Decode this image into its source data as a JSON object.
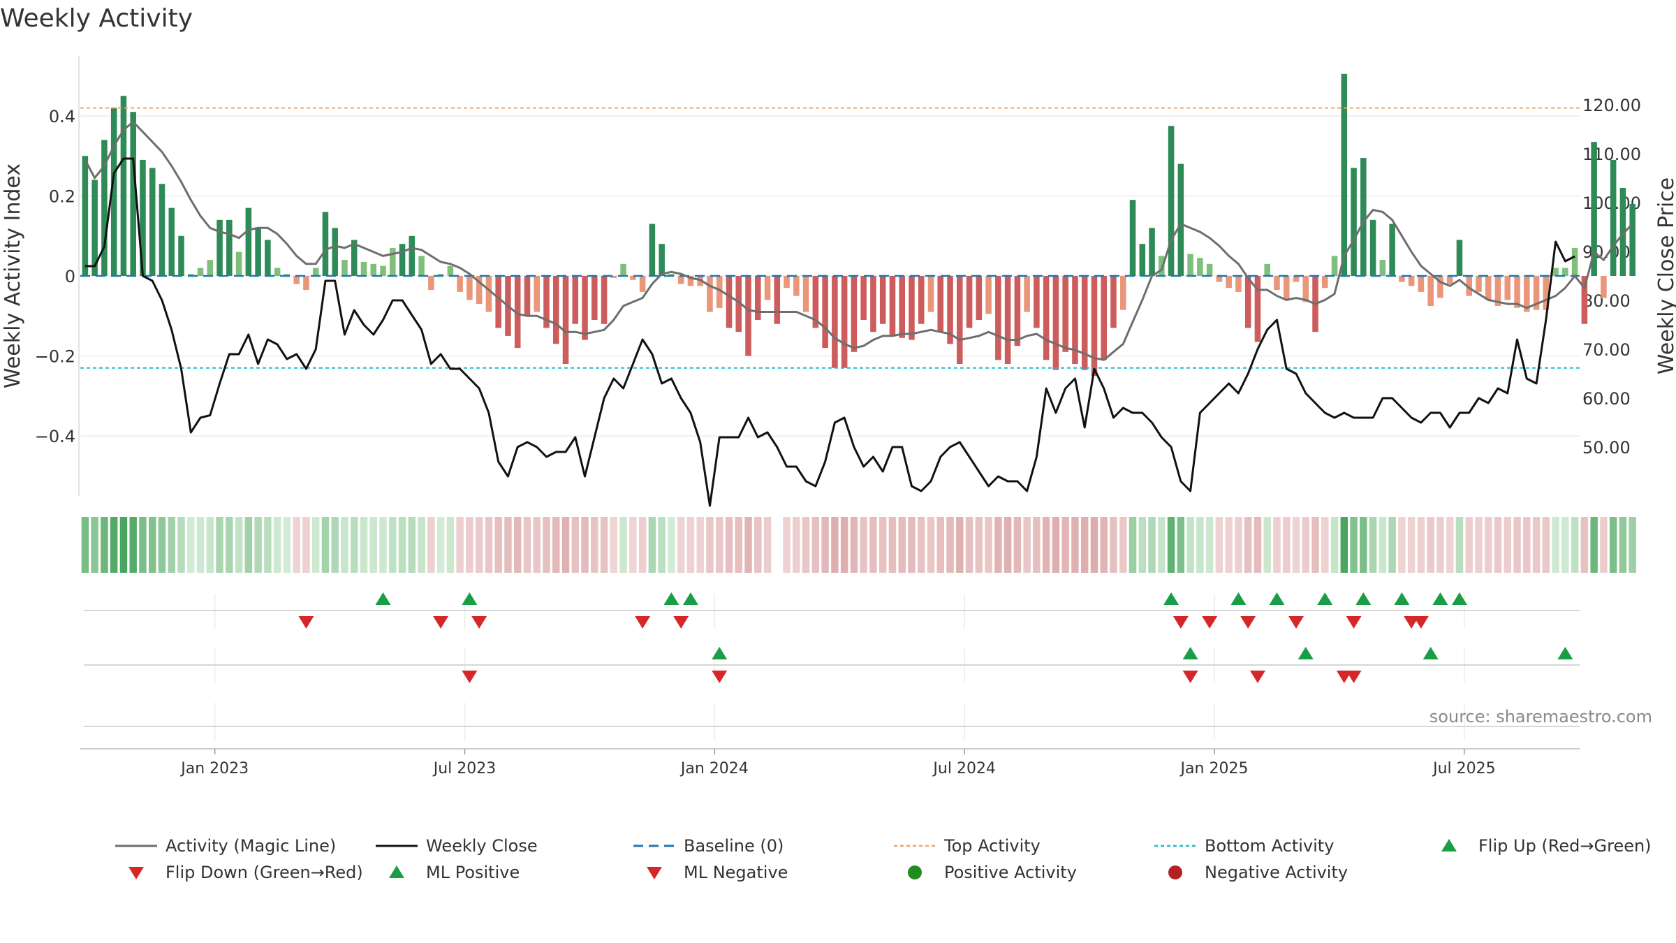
{
  "colors": {
    "pos_dark": "#2e8b57",
    "pos_light": "#7fbf7b",
    "neg_dark": "#cd5c5c",
    "neg_light": "#e9967a",
    "magic_line": "#6e6e6e",
    "close": "#111111",
    "baseline": "#1f77b4",
    "top": "#f4a460",
    "bottom": "#17becf",
    "up_marker": "#1a9e45",
    "down_marker": "#d62728",
    "neg_dot": "#b22222"
  },
  "chart_data": {
    "type": "bar",
    "title": "Weekly Activity",
    "ylabel": "Weekly Activity Index",
    "y2label": "Weekly Close Price",
    "ylim": [
      -0.55,
      0.55
    ],
    "y2lim": [
      40,
      130
    ],
    "yticks": [
      0.4,
      0.2,
      0,
      -0.2,
      -0.4
    ],
    "ytick_labels": [
      "0.4",
      "0.2",
      "0",
      "−0.2",
      "−0.4"
    ],
    "y2ticks": [
      120,
      110,
      100,
      90,
      80,
      70,
      60,
      50
    ],
    "y2tick_labels": [
      "120.00",
      "110.00",
      "100.00",
      "90.00",
      "80.00",
      "70.00",
      "60.00",
      "50.00"
    ],
    "xlim": [
      0,
      156
    ],
    "xticks": [
      14,
      40,
      66,
      92,
      118,
      144
    ],
    "xtick_labels": [
      "Jan 2023",
      "Jul 2023",
      "Jan 2024",
      "Jul 2024",
      "Jan 2025",
      "Jul 2025"
    ],
    "top_activity": 0.42,
    "bottom_activity": -0.23,
    "baseline": 0,
    "activity": [
      0.3,
      0.24,
      0.34,
      0.42,
      0.45,
      0.41,
      0.29,
      0.27,
      0.23,
      0.17,
      0.1,
      0.005,
      0.02,
      0.04,
      0.14,
      0.14,
      0.06,
      0.17,
      0.12,
      0.09,
      0.02,
      0.005,
      -0.02,
      -0.035,
      0.02,
      0.16,
      0.12,
      0.04,
      0.09,
      0.035,
      0.03,
      0.025,
      0.07,
      0.08,
      0.1,
      0.05,
      -0.035,
      0.005,
      0.025,
      -0.04,
      -0.06,
      -0.07,
      -0.09,
      -0.13,
      -0.15,
      -0.18,
      -0.1,
      -0.09,
      -0.13,
      -0.17,
      -0.22,
      -0.12,
      -0.16,
      -0.11,
      -0.12,
      -0.005,
      0.03,
      -0.01,
      -0.04,
      0.13,
      0.08,
      0.005,
      -0.02,
      -0.025,
      -0.025,
      -0.09,
      -0.08,
      -0.13,
      -0.14,
      -0.2,
      -0.11,
      -0.06,
      -0.12,
      -0.03,
      -0.05,
      -0.09,
      -0.13,
      -0.18,
      -0.23,
      -0.23,
      -0.19,
      -0.11,
      -0.14,
      -0.12,
      -0.15,
      -0.155,
      -0.16,
      -0.12,
      -0.09,
      -0.14,
      -0.17,
      -0.22,
      -0.13,
      -0.11,
      -0.095,
      -0.21,
      -0.22,
      -0.175,
      -0.09,
      -0.13,
      -0.21,
      -0.235,
      -0.19,
      -0.22,
      -0.235,
      -0.25,
      -0.21,
      -0.13,
      -0.085,
      0.19,
      0.08,
      0.12,
      0.05,
      0.375,
      0.28,
      0.055,
      0.045,
      0.03,
      -0.015,
      -0.03,
      -0.04,
      -0.13,
      -0.165,
      0.03,
      -0.035,
      -0.06,
      -0.015,
      -0.065,
      -0.14,
      -0.03,
      0.05,
      0.505,
      0.27,
      0.295,
      0.14,
      0.04,
      0.13,
      -0.015,
      -0.025,
      -0.04,
      -0.075,
      -0.055,
      -0.02,
      0.09,
      -0.05,
      -0.04,
      -0.06,
      -0.075,
      -0.06,
      -0.08,
      -0.09,
      -0.085,
      -0.085,
      0.02,
      0.02,
      0.07,
      -0.12,
      0.335,
      -0.055,
      0.29,
      0.22,
      0.18
    ],
    "magic_line": [
      0.29,
      0.245,
      0.275,
      0.325,
      0.365,
      0.385,
      0.36,
      0.335,
      0.31,
      0.275,
      0.235,
      0.19,
      0.15,
      0.12,
      0.11,
      0.105,
      0.095,
      0.115,
      0.12,
      0.12,
      0.105,
      0.08,
      0.05,
      0.03,
      0.03,
      0.065,
      0.075,
      0.07,
      0.08,
      0.07,
      0.06,
      0.05,
      0.055,
      0.06,
      0.07,
      0.065,
      0.05,
      0.035,
      0.03,
      0.02,
      0.005,
      -0.015,
      -0.035,
      -0.055,
      -0.075,
      -0.095,
      -0.1,
      -0.1,
      -0.11,
      -0.12,
      -0.14,
      -0.14,
      -0.145,
      -0.14,
      -0.135,
      -0.11,
      -0.075,
      -0.065,
      -0.055,
      -0.02,
      0.005,
      0.01,
      0.005,
      -0.005,
      -0.01,
      -0.025,
      -0.035,
      -0.05,
      -0.065,
      -0.085,
      -0.09,
      -0.09,
      -0.09,
      -0.09,
      -0.09,
      -0.1,
      -0.11,
      -0.13,
      -0.155,
      -0.17,
      -0.18,
      -0.175,
      -0.16,
      -0.15,
      -0.15,
      -0.145,
      -0.145,
      -0.14,
      -0.135,
      -0.14,
      -0.145,
      -0.16,
      -0.155,
      -0.15,
      -0.14,
      -0.15,
      -0.16,
      -0.16,
      -0.15,
      -0.145,
      -0.16,
      -0.17,
      -0.18,
      -0.185,
      -0.195,
      -0.205,
      -0.21,
      -0.19,
      -0.17,
      -0.115,
      -0.06,
      0.0,
      0.015,
      0.09,
      0.13,
      0.12,
      0.11,
      0.095,
      0.075,
      0.05,
      0.03,
      -0.005,
      -0.035,
      -0.035,
      -0.05,
      -0.06,
      -0.055,
      -0.06,
      -0.07,
      -0.06,
      -0.045,
      0.05,
      0.09,
      0.135,
      0.165,
      0.16,
      0.14,
      0.1,
      0.06,
      0.025,
      0.005,
      -0.015,
      -0.025,
      -0.01,
      -0.03,
      -0.045,
      -0.06,
      -0.065,
      -0.07,
      -0.07,
      -0.08,
      -0.07,
      -0.06,
      -0.05,
      -0.03,
      0.0,
      -0.03,
      0.06,
      0.04,
      0.075,
      0.105,
      0.13
    ],
    "weekly_close": [
      87,
      87,
      91,
      106,
      109,
      109,
      85,
      84,
      80,
      74,
      66,
      53,
      56,
      56.5,
      63,
      69,
      69,
      73,
      67,
      72,
      71,
      68,
      69,
      66,
      70,
      84,
      84,
      73,
      78,
      75,
      73,
      76,
      80,
      80,
      77,
      74,
      67,
      69,
      66,
      66,
      64,
      62,
      57,
      47,
      44,
      50,
      51,
      50,
      48,
      49,
      49,
      52,
      44,
      52,
      60,
      64,
      62,
      67,
      72,
      69,
      63,
      64,
      60,
      57,
      51,
      38,
      52,
      52,
      52,
      56,
      52,
      53,
      50,
      46,
      46,
      43,
      42,
      47,
      55,
      56,
      50,
      46,
      48,
      45,
      50,
      50,
      42,
      41,
      43,
      48,
      50,
      51,
      48,
      45,
      42,
      44,
      43,
      43,
      41,
      48,
      62,
      57,
      62,
      64,
      54,
      66,
      62,
      56,
      58,
      57,
      57,
      55,
      52,
      50,
      43,
      41,
      57,
      59,
      61,
      63,
      61,
      65,
      70,
      74,
      76,
      66,
      65,
      61,
      59,
      57,
      56,
      57,
      56,
      56,
      56,
      60,
      60,
      58,
      56,
      55,
      57,
      57,
      54,
      57,
      57,
      60,
      59,
      62,
      61,
      72,
      64,
      63,
      76,
      92,
      88,
      89
    ],
    "flip_up": [
      31,
      40,
      61,
      63,
      113,
      120,
      124,
      129,
      133,
      137,
      141,
      143
    ],
    "flip_down": [
      23,
      37,
      41,
      58,
      62,
      114,
      117,
      121,
      126,
      132,
      138,
      139
    ],
    "ml_positive": [
      66,
      115,
      127,
      140,
      154
    ],
    "ml_negative": [
      40,
      66,
      115,
      122,
      131,
      132
    ],
    "positive_activity": [],
    "negative_activity": [],
    "heat_gap": [
      72
    ],
    "source_label": "source: sharemaestro.com"
  },
  "legend": [
    {
      "label": "Activity (Magic Line)",
      "kind": "line"
    },
    {
      "label": "Weekly Close",
      "kind": "line"
    },
    {
      "label": "Baseline (0)",
      "kind": "dash"
    },
    {
      "label": "Top Activity",
      "kind": "dot"
    },
    {
      "label": "Bottom Activity",
      "kind": "dot"
    },
    {
      "label": "Flip Up (Red→Green)",
      "kind": "tri-up"
    },
    {
      "label": "Flip Down (Green→Red)",
      "kind": "tri-down"
    },
    {
      "label": "ML Positive",
      "kind": "tri-up"
    },
    {
      "label": "ML Negative",
      "kind": "tri-down"
    },
    {
      "label": "Positive Activity",
      "kind": "circle-green"
    },
    {
      "label": "Negative Activity",
      "kind": "circle-red"
    }
  ]
}
